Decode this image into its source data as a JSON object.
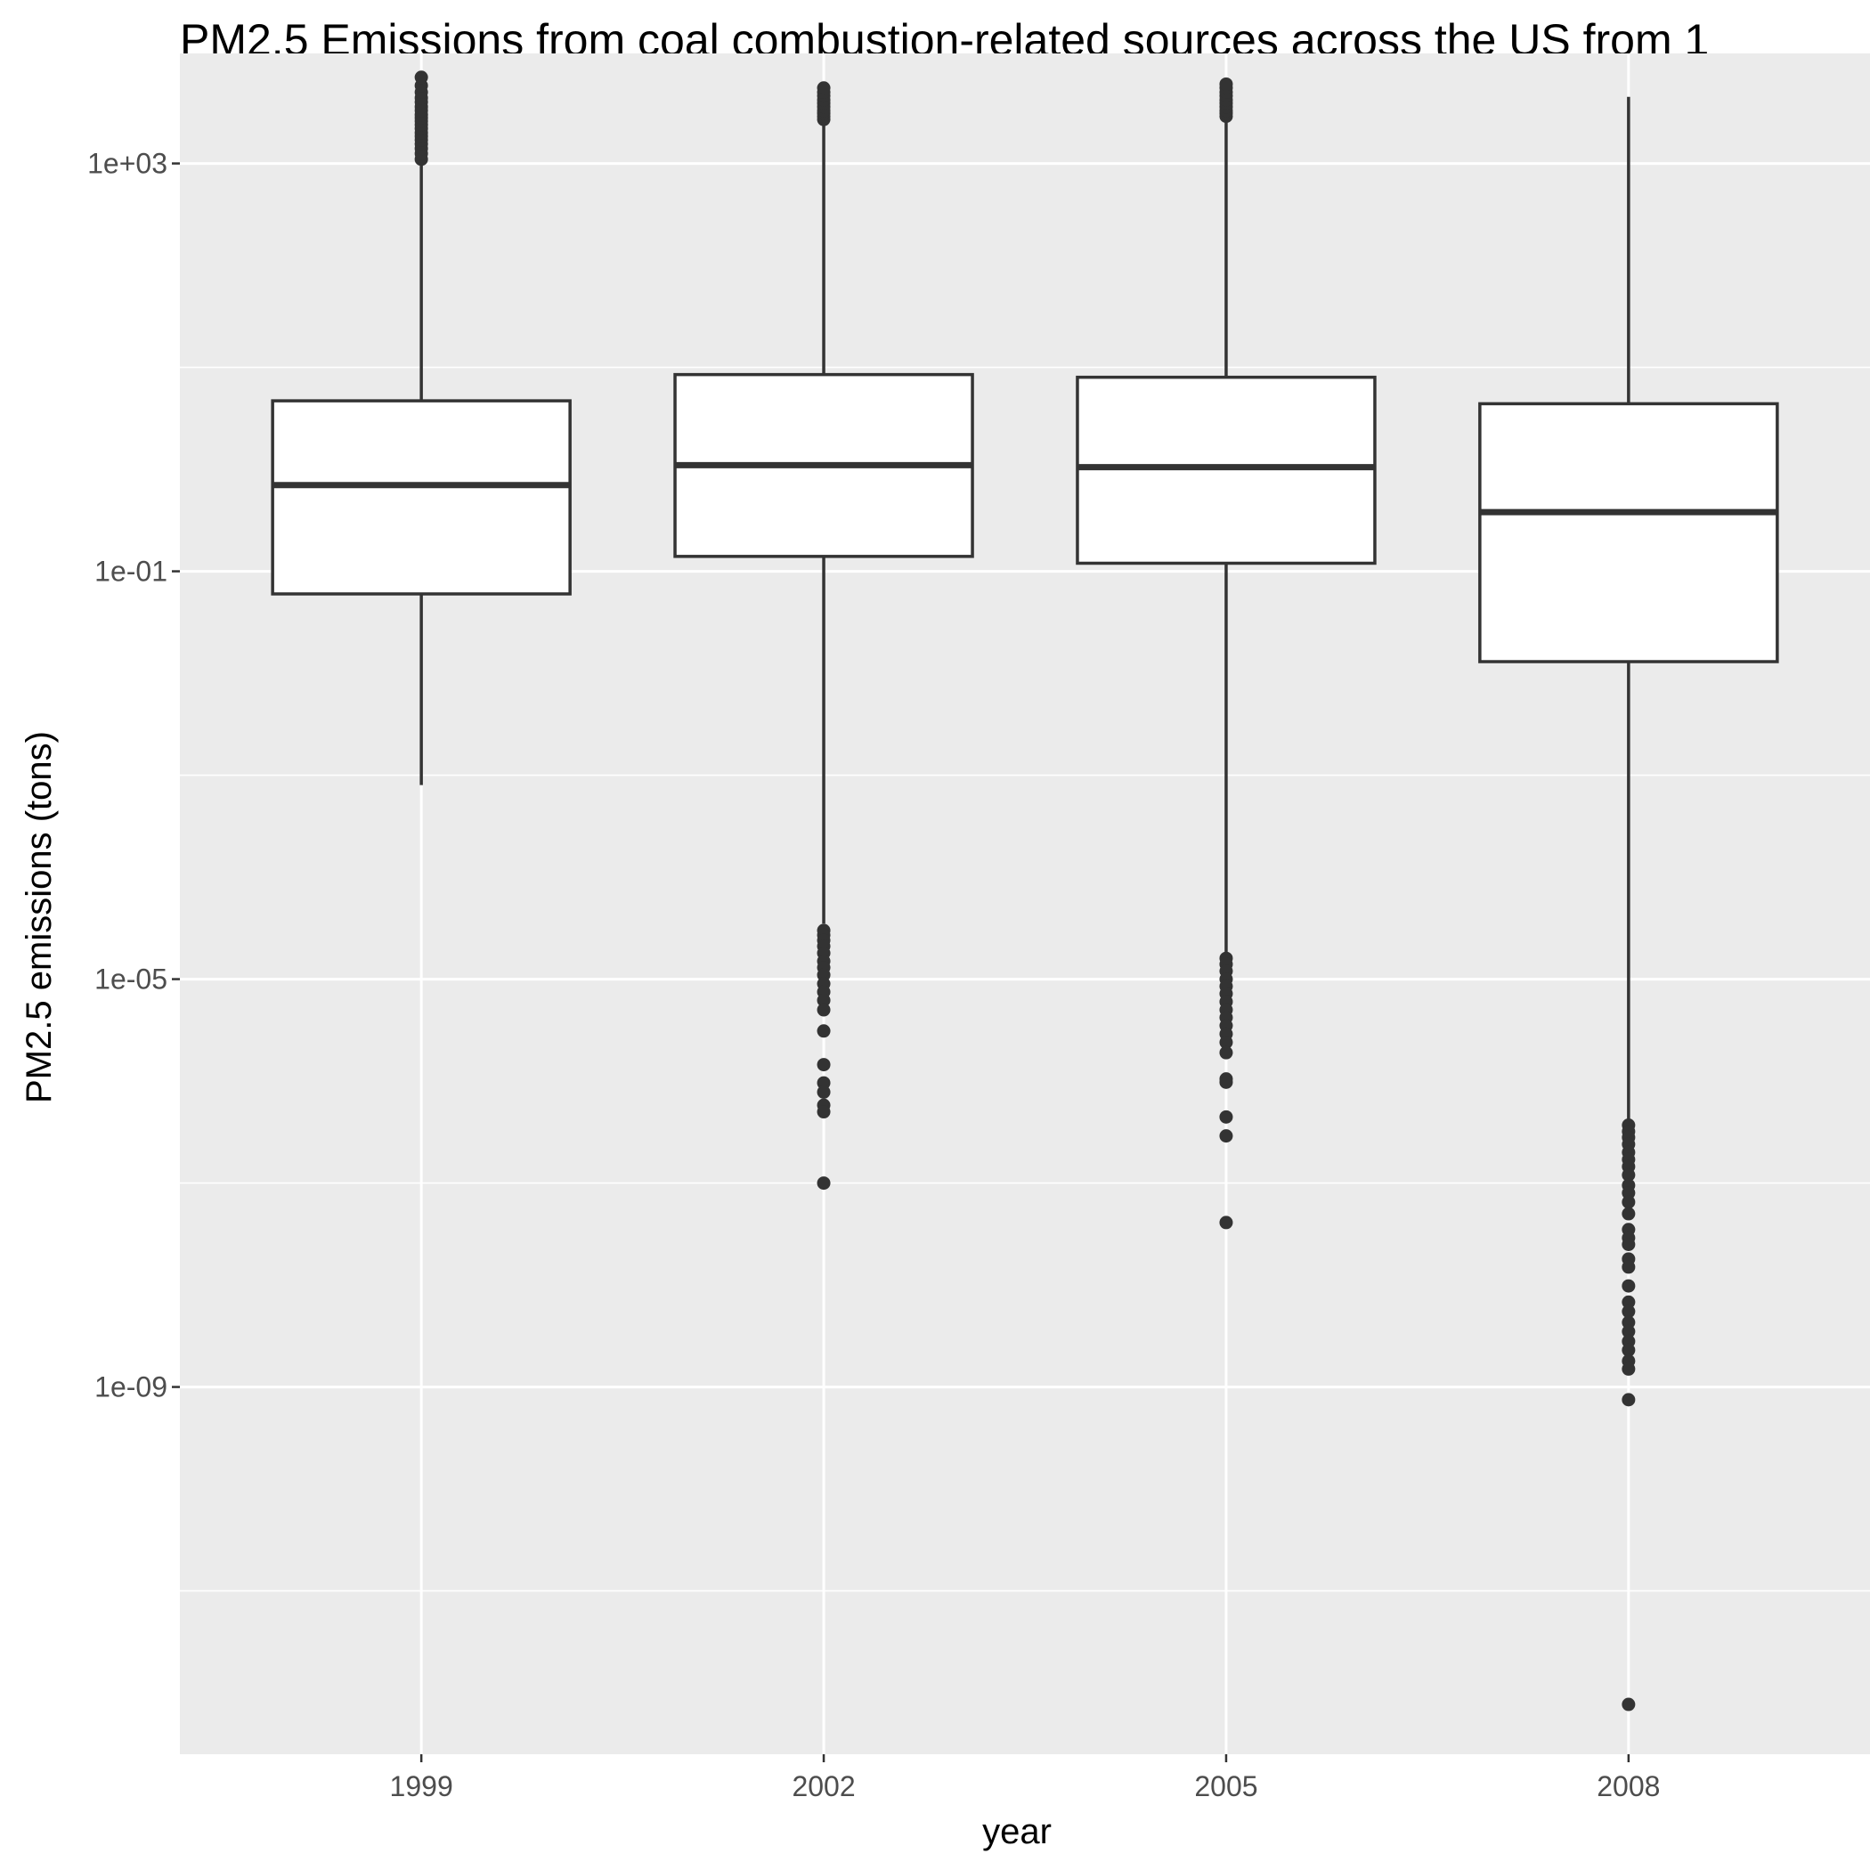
{
  "chart_data": {
    "type": "boxplot",
    "title": "PM2.5 Emissions from coal combustion-related sources across the US from 1",
    "xlabel": "year",
    "ylabel": "PM2.5 emissions (tons)",
    "y_scale": "log10",
    "ylim": [
      2.5e-13,
      12000.0
    ],
    "y_major_ticks": [
      {
        "value": 1000.0,
        "label": "1e+03"
      },
      {
        "value": 0.1,
        "label": "1e-01"
      },
      {
        "value": 1e-05,
        "label": "1e-05"
      },
      {
        "value": 1e-09,
        "label": "1e-09"
      }
    ],
    "y_minor_ticks": [
      10,
      0.001,
      1e-07,
      1e-11
    ],
    "grid": true,
    "legend": "none",
    "categories": [
      "1999",
      "2002",
      "2005",
      "2008"
    ],
    "boxes": [
      {
        "category": "1999",
        "whisker_low": 0.0008,
        "q1": 0.06,
        "median": 0.7,
        "q3": 4.7,
        "whisker_high": 1000,
        "outliers": [
          1100,
          1250,
          1400,
          1550,
          1700,
          1850,
          2000,
          2200,
          2400,
          2600,
          2800,
          3000,
          3300,
          3600,
          4000,
          4400,
          5000,
          5800,
          7000
        ]
      },
      {
        "category": "2002",
        "whisker_low": 3.5e-05,
        "q1": 0.14,
        "median": 1.1,
        "q3": 8.5,
        "whisker_high": 2600,
        "outliers": [
          3e-05,
          2.7e-05,
          2.4e-05,
          2.1e-05,
          1.8e-05,
          1.5e-05,
          1.3e-05,
          1.1e-05,
          9e-06,
          7.5e-06,
          6.2e-06,
          5e-06,
          3.1e-06,
          1.45e-06,
          9.6e-07,
          7.8e-07,
          5.8e-07,
          5e-07,
          1e-07,
          2700,
          2900,
          3100,
          3300,
          3600,
          3900,
          4200,
          4600,
          5000,
          5500
        ]
      },
      {
        "category": "2005",
        "whisker_low": 1.8e-05,
        "q1": 0.12,
        "median": 1.05,
        "q3": 8.0,
        "whisker_high": 2700,
        "outliers": [
          1.6e-05,
          1.4e-05,
          1.2e-05,
          1e-05,
          8.5e-06,
          7.2e-06,
          6e-06,
          5e-06,
          4.2e-06,
          3.5e-06,
          2.9e-06,
          2.4e-06,
          1.9e-06,
          1.05e-06,
          9.75e-07,
          4.45e-07,
          2.9e-07,
          4.1e-08,
          2900,
          3100,
          3300,
          3600,
          3900,
          4200,
          4600,
          5000,
          5500,
          6000
        ]
      },
      {
        "category": "2008",
        "whisker_low": 4e-07,
        "q1": 0.013,
        "median": 0.38,
        "q3": 4.4,
        "whisker_high": 4500,
        "outliers": [
          3.7e-07,
          3.2e-07,
          2.8e-07,
          2.4e-07,
          2e-07,
          1.7e-07,
          1.45e-07,
          1.2e-07,
          9.5e-08,
          8e-08,
          6.5e-08,
          5e-08,
          3.5e-08,
          2.9e-08,
          2.5e-08,
          1.8e-08,
          1.5e-08,
          9.8e-09,
          6.8e-09,
          5.5e-09,
          4.3e-09,
          3.5e-09,
          2.8e-09,
          2.3e-09,
          1.8e-09,
          1.5e-09,
          7.5e-10,
          7.7e-13
        ]
      }
    ],
    "colors": {
      "panel_background": "#ebebeb",
      "grid_major": "#ffffff",
      "grid_minor": "#ffffff",
      "box_fill": "#ffffff",
      "box_line": "#333333",
      "outlier": "#333333",
      "tick_mark": "#333333"
    }
  }
}
